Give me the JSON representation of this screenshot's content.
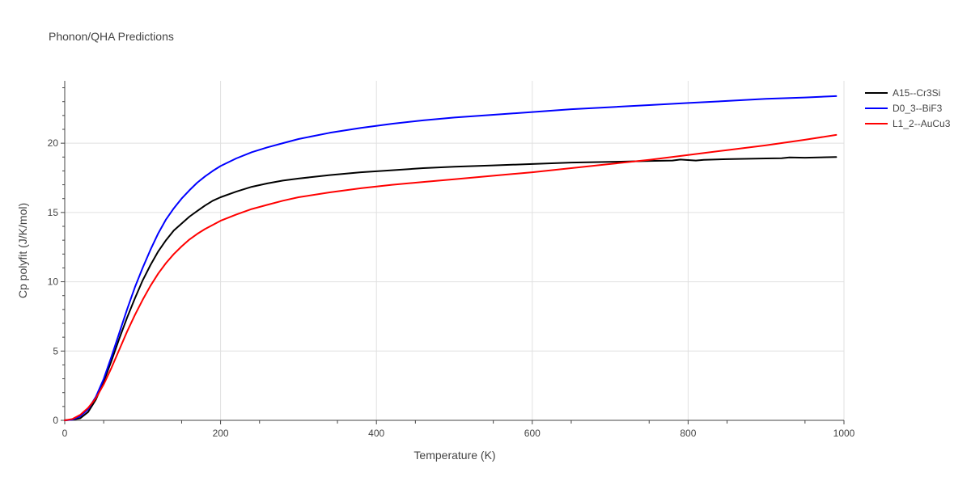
{
  "chart_data": {
    "type": "line",
    "title": "Phonon/QHA Predictions",
    "xlabel": "Temperature (K)",
    "ylabel": "Cp polyfit (J/K/mol)",
    "xlim": [
      0,
      1000
    ],
    "ylim": [
      0,
      24.5
    ],
    "x_ticks": [
      0,
      200,
      400,
      600,
      800,
      1000
    ],
    "y_ticks": [
      0,
      5,
      10,
      15,
      20
    ],
    "grid": true,
    "legend_position": "top-right",
    "series": [
      {
        "name": "A15--Cr3Si",
        "color": "#000000",
        "x": [
          0,
          10,
          20,
          30,
          40,
          50,
          60,
          70,
          80,
          90,
          100,
          110,
          120,
          130,
          140,
          150,
          160,
          170,
          180,
          190,
          200,
          220,
          240,
          260,
          280,
          300,
          340,
          380,
          420,
          460,
          500,
          550,
          600,
          650,
          700,
          750,
          780,
          790,
          810,
          820,
          850,
          900,
          920,
          930,
          950,
          990
        ],
        "y": [
          0,
          0.05,
          0.15,
          0.6,
          1.5,
          2.8,
          4.3,
          5.9,
          7.4,
          8.8,
          10.1,
          11.2,
          12.2,
          13.0,
          13.7,
          14.2,
          14.7,
          15.1,
          15.5,
          15.85,
          16.1,
          16.5,
          16.85,
          17.1,
          17.3,
          17.45,
          17.7,
          17.9,
          18.05,
          18.2,
          18.3,
          18.4,
          18.5,
          18.6,
          18.65,
          18.72,
          18.75,
          18.82,
          18.75,
          18.8,
          18.85,
          18.9,
          18.92,
          18.97,
          18.95,
          19.0
        ]
      },
      {
        "name": "D0_3--BiF3",
        "color": "#0000ff",
        "x": [
          0,
          10,
          20,
          30,
          40,
          50,
          60,
          70,
          80,
          90,
          100,
          110,
          120,
          130,
          140,
          150,
          160,
          170,
          180,
          190,
          200,
          220,
          240,
          260,
          280,
          300,
          340,
          380,
          420,
          460,
          500,
          550,
          600,
          650,
          700,
          750,
          800,
          850,
          900,
          950,
          990
        ],
        "y": [
          0,
          0.05,
          0.3,
          0.8,
          1.7,
          3.0,
          4.6,
          6.3,
          8.0,
          9.6,
          11.0,
          12.3,
          13.5,
          14.5,
          15.3,
          16.0,
          16.6,
          17.15,
          17.6,
          18.0,
          18.35,
          18.9,
          19.35,
          19.7,
          20.0,
          20.3,
          20.75,
          21.1,
          21.4,
          21.65,
          21.85,
          22.05,
          22.25,
          22.45,
          22.6,
          22.75,
          22.9,
          23.05,
          23.2,
          23.3,
          23.4
        ]
      },
      {
        "name": "L1_2--AuCu3",
        "color": "#ff0000",
        "x": [
          0,
          10,
          20,
          30,
          40,
          50,
          60,
          70,
          80,
          90,
          100,
          110,
          120,
          130,
          140,
          150,
          160,
          170,
          180,
          190,
          200,
          220,
          240,
          260,
          280,
          300,
          340,
          380,
          420,
          460,
          500,
          550,
          600,
          650,
          700,
          750,
          800,
          850,
          900,
          950,
          990
        ],
        "y": [
          0,
          0.1,
          0.4,
          0.9,
          1.6,
          2.6,
          3.8,
          5.1,
          6.4,
          7.6,
          8.7,
          9.7,
          10.6,
          11.35,
          12.0,
          12.55,
          13.05,
          13.45,
          13.8,
          14.1,
          14.4,
          14.85,
          15.25,
          15.55,
          15.85,
          16.1,
          16.45,
          16.75,
          17.0,
          17.2,
          17.4,
          17.65,
          17.9,
          18.2,
          18.5,
          18.8,
          19.15,
          19.5,
          19.85,
          20.25,
          20.6
        ]
      }
    ]
  }
}
